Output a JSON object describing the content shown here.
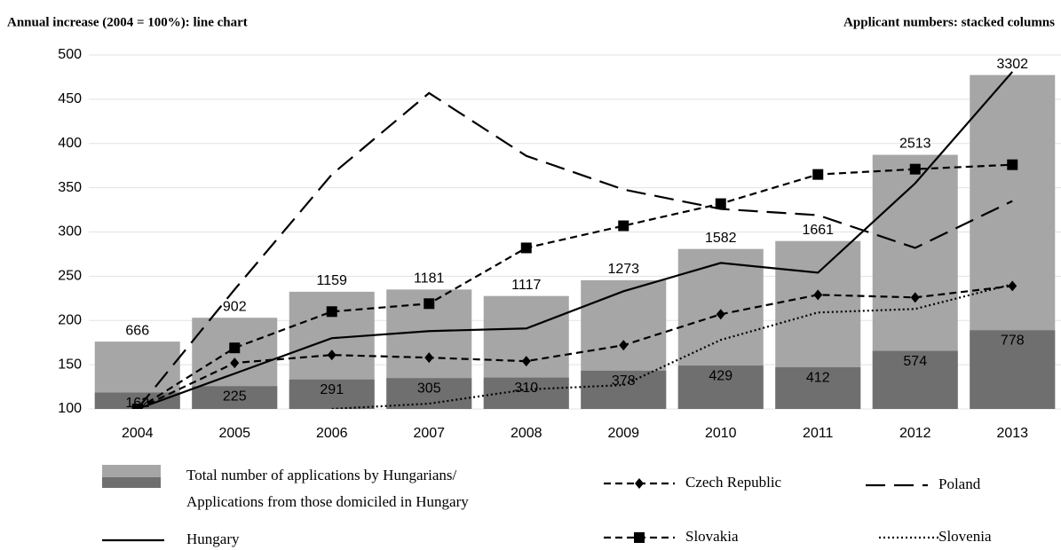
{
  "chart_data": {
    "type": "combo",
    "title": "Annual increase (2004 = 100%): line chart",
    "subtitle": "Applicant numbers: stacked columns",
    "categories": [
      "2004",
      "2005",
      "2006",
      "2007",
      "2008",
      "2009",
      "2010",
      "2011",
      "2012",
      "2013"
    ],
    "ylim": [
      100,
      500
    ],
    "yticks": [
      100,
      150,
      200,
      250,
      300,
      350,
      400,
      450,
      500
    ],
    "y2lim": [
      0,
      3500
    ],
    "grid": true,
    "series": [
      {
        "name": "Total number of applications by Hungarians/",
        "type": "bar",
        "axis": "y2",
        "color": "#a6a6a6",
        "values": [
          666,
          902,
          1159,
          1181,
          1117,
          1273,
          1582,
          1661,
          2513,
          3302
        ]
      },
      {
        "name": "Applications from those domiciled in Hungary",
        "type": "bar",
        "axis": "y2",
        "color": "#6f6f6f",
        "values": [
          162,
          225,
          291,
          305,
          310,
          378,
          429,
          412,
          574,
          778
        ]
      },
      {
        "name": "Czech Republic",
        "type": "line",
        "color": "#000000",
        "dash": "8,5",
        "marker": "diamond",
        "values": [
          100,
          152,
          161,
          158,
          154,
          172,
          207,
          229,
          226,
          239
        ]
      },
      {
        "name": "Poland",
        "type": "line",
        "color": "#000000",
        "dash": "22,10",
        "marker": "none",
        "values": [
          100,
          235,
          365,
          457,
          386,
          348,
          326,
          319,
          282,
          335
        ]
      },
      {
        "name": "Hungary",
        "type": "line",
        "color": "#000000",
        "dash": "none",
        "marker": "none",
        "values": [
          100,
          140,
          180,
          188,
          191,
          233,
          265,
          254,
          355,
          481
        ]
      },
      {
        "name": "Slovakia",
        "type": "line",
        "color": "#000000",
        "dash": "8,5",
        "marker": "square",
        "values": [
          100,
          169,
          210,
          219,
          282,
          307,
          332,
          365,
          371,
          376
        ]
      },
      {
        "name": "Slovenia",
        "type": "line",
        "color": "#000000",
        "dash": "2,3",
        "marker": "none",
        "values": [
          null,
          null,
          100,
          106,
          122,
          127,
          178,
          209,
          213,
          241
        ]
      }
    ]
  }
}
